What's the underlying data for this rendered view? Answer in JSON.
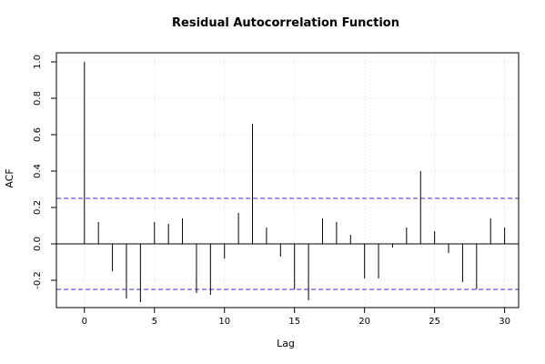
{
  "chart_data": {
    "type": "bar",
    "title": "Residual Autocorrelation Function",
    "xlabel": "Lag",
    "ylabel": "ACF",
    "x": [
      0,
      1,
      2,
      3,
      4,
      5,
      6,
      7,
      8,
      9,
      10,
      11,
      12,
      13,
      14,
      15,
      16,
      17,
      18,
      19,
      20,
      21,
      22,
      23,
      24,
      25,
      26,
      27,
      28,
      29,
      30
    ],
    "values": [
      1.0,
      0.12,
      -0.15,
      -0.3,
      -0.32,
      0.12,
      0.11,
      0.14,
      -0.27,
      -0.28,
      -0.08,
      0.17,
      0.66,
      0.09,
      -0.07,
      -0.25,
      -0.31,
      0.14,
      0.12,
      0.05,
      -0.19,
      -0.19,
      -0.02,
      0.09,
      0.4,
      0.07,
      -0.05,
      -0.21,
      -0.25,
      0.14,
      0.09
    ],
    "confidence_bound": 0.25,
    "xlim": [
      -2,
      31
    ],
    "ylim": [
      -0.35,
      1.05
    ],
    "xticks": [
      0,
      5,
      10,
      15,
      20,
      25,
      30
    ],
    "yticks": [
      -0.2,
      0.0,
      0.2,
      0.4,
      0.6,
      0.8,
      1.0
    ],
    "ytick_labels": [
      "-0.2",
      "0.0",
      "0.2",
      "0.4",
      "0.6",
      "0.8",
      "1.0"
    ],
    "grid": true,
    "colors": {
      "bars": "#000000",
      "bounds": "#3333cc",
      "grid": "#d9d9d9"
    }
  }
}
